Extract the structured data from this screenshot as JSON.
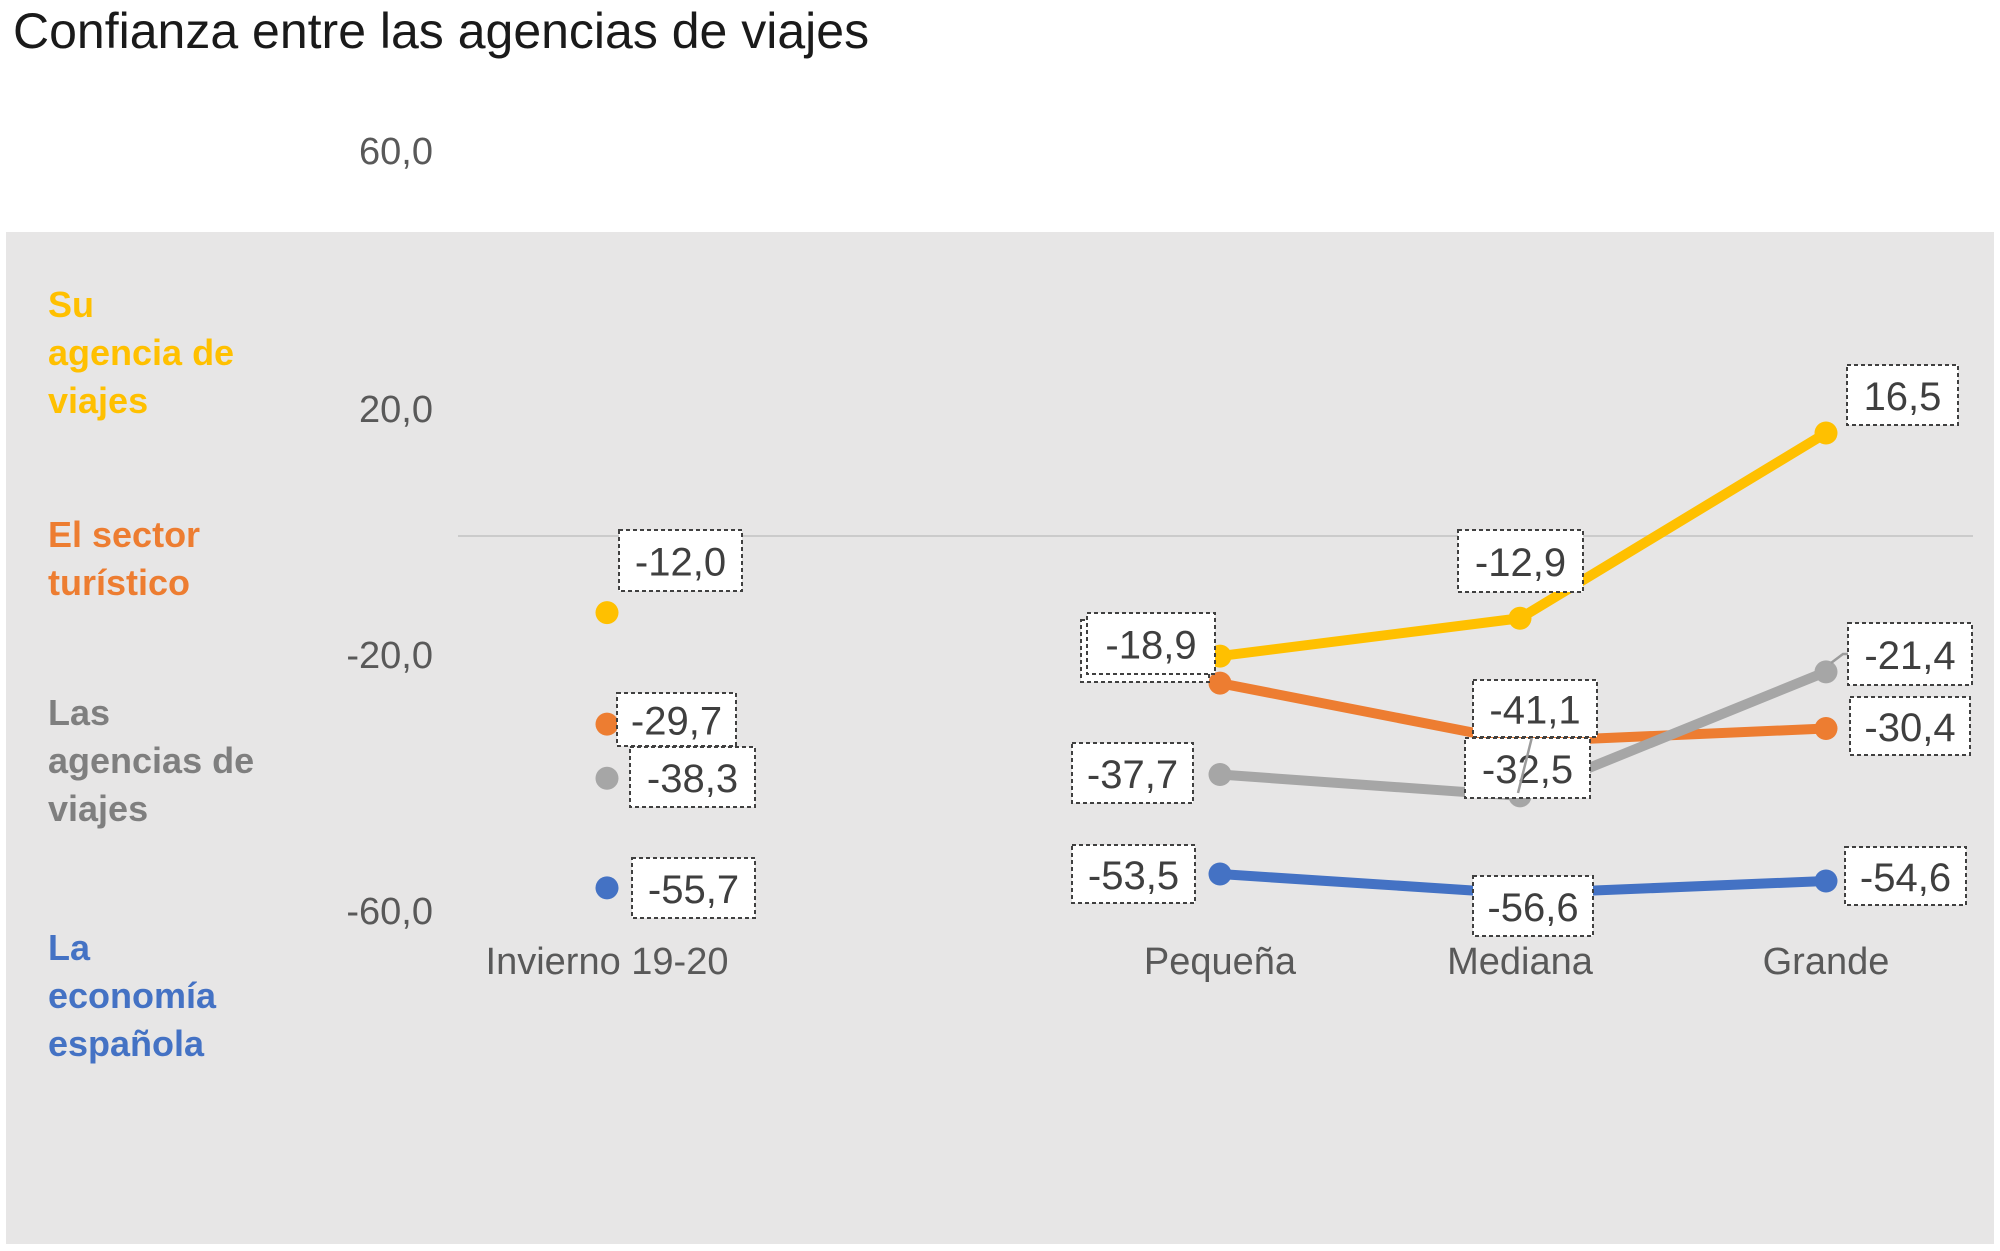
{
  "chart": {
    "title": "Confianza entre las agencias de viajes"
  },
  "chart_data": {
    "type": "line",
    "title": "Confianza entre las agencias de viajes",
    "categories": [
      "Invierno 19-20",
      "Pequeña",
      "Mediana",
      "Grande"
    ],
    "y_axis": {
      "ticks": [
        "60,0",
        "20,0",
        "-20,0",
        "-60,0"
      ],
      "tick_values": [
        60,
        20,
        -20,
        -60
      ],
      "range": [
        -80,
        80
      ],
      "gridlines": "single horizontal line at 0 only"
    },
    "series": [
      {
        "name": "Su agencia de viajes",
        "color": "#FFC000",
        "values": [
          -12.0,
          -18.9,
          -12.9,
          16.5
        ],
        "labels": [
          "-12,0",
          "-18,9",
          "-12,9",
          "16,5"
        ]
      },
      {
        "name": "El sector turístico",
        "color": "#ED7D31",
        "values": [
          -29.7,
          -23.2,
          -32.5,
          -30.4
        ],
        "labels": [
          "-29,7",
          null,
          "-32,5",
          "-30,4"
        ],
        "note": "Pequeña value estimated from marker position; its data label is hidden behind the -18,9 label box"
      },
      {
        "name": "Las agencias de viajes",
        "color": "#A6A6A6",
        "values": [
          -38.3,
          -37.7,
          -41.1,
          -21.4
        ],
        "labels": [
          "-38,3",
          "-37,7",
          "-41,1",
          "-21,4"
        ]
      },
      {
        "name": "La economía española",
        "color": "#4472C4",
        "values": [
          -55.7,
          -53.5,
          -56.6,
          -54.6
        ],
        "labels": [
          "-55,7",
          "-53,5",
          "-56,6",
          "-54,6"
        ]
      }
    ],
    "layout_hint": "First category (Invierno 19-20) shown as isolated markers; Pequeña, Mediana and Grande are connected by thick lines; data labels sit in white boxes with small dashed borders; two labels use thin gray leader lines (-41,1 and -21,4); legend is stacked vertically at the left in series colors"
  },
  "legend": {
    "items": [
      {
        "text": "Su\nagencia de\nviajes",
        "color": "#FFC000"
      },
      {
        "text": "El sector\nturístico",
        "color": "#ED7D31"
      },
      {
        "text": "Las\nagencias de\nviajes",
        "color": "#7F7F7F"
      },
      {
        "text": "La\neconomía\nespañola",
        "color": "#4472C4"
      }
    ]
  },
  "colors": {
    "plot_bg": "#E7E6E6",
    "gridline": "#CBCBCB",
    "tick_text": "#595959",
    "label_text": "#3F3F3F",
    "label_box_bg": "#FFFFFF",
    "label_box_border": "#404040",
    "leader_line": "#9B9B9B",
    "title_text": "#1A1A1A"
  }
}
